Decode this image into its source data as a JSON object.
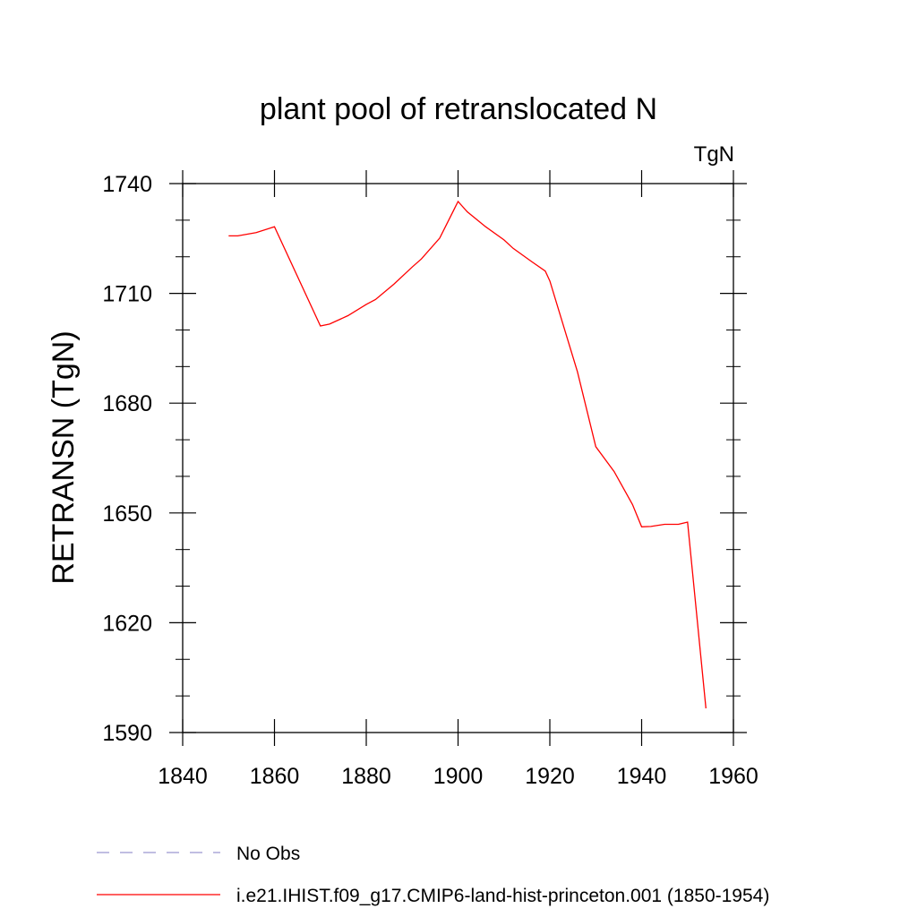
{
  "chart_data": {
    "type": "line",
    "title": "plant pool of retranslocated N",
    "units_label": "TgN",
    "xlabel": "",
    "ylabel": "RETRANSN  (TgN)",
    "xlim": [
      1840,
      1960
    ],
    "ylim": [
      1590,
      1740
    ],
    "xticks": [
      1840,
      1860,
      1880,
      1900,
      1920,
      1940,
      1960
    ],
    "yticks": [
      1590,
      1620,
      1650,
      1680,
      1710,
      1740
    ],
    "grid": false,
    "legend_position": "bottom-left",
    "series": [
      {
        "name": "i.e21.IHIST.f09_g17.CMIP6-land-hist-princeton.001 (1850-1954)",
        "color": "#ff0000",
        "style": "solid",
        "x": [
          1850,
          1852,
          1856,
          1860,
          1870,
          1872,
          1876,
          1880,
          1882,
          1886,
          1890,
          1892,
          1896,
          1900,
          1902,
          1906,
          1910,
          1912,
          1916,
          1919,
          1920,
          1926,
          1930,
          1934,
          1938,
          1940,
          1942,
          1945,
          1948,
          1950,
          1954
        ],
        "y": [
          1725.7,
          1725.7,
          1726.6,
          1728.2,
          1701.1,
          1701.6,
          1703.9,
          1707,
          1708.3,
          1712.5,
          1717.2,
          1719.4,
          1725.1,
          1735.1,
          1732.3,
          1728.2,
          1724.6,
          1722.3,
          1718.7,
          1716.1,
          1713.4,
          1688.6,
          1668.1,
          1661.3,
          1652.3,
          1646.2,
          1646.3,
          1646.9,
          1646.9,
          1647.5,
          1596.6
        ]
      },
      {
        "name": "No Obs",
        "color": "#9a96d0",
        "style": "dashed",
        "x": [],
        "y": []
      }
    ]
  }
}
